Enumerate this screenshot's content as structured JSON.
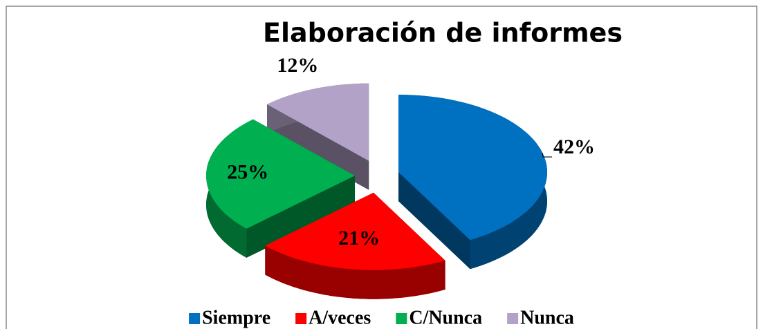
{
  "chart_data": {
    "type": "pie",
    "title": "Elaboración de informes",
    "categories": [
      "Siempre",
      "A/veces",
      "C/Nunca",
      "Nunca"
    ],
    "values": [
      42,
      21,
      25,
      12
    ],
    "value_labels": [
      "42%",
      "21%",
      "25%",
      "12%"
    ],
    "colors": [
      "#0070c0",
      "#ff0000",
      "#00b050",
      "#b3a2c7"
    ],
    "legend": "bottom"
  }
}
